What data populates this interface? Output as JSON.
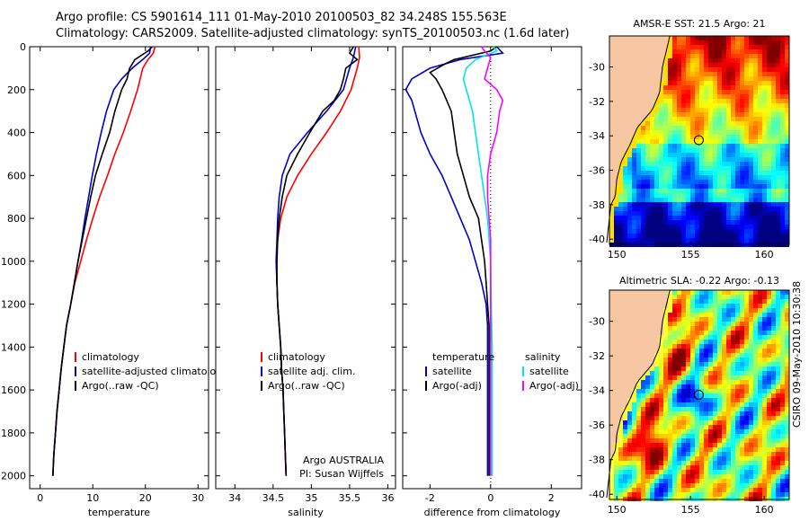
{
  "title_line1": "Argo profile: CS 5901614_111 01-May-2010 20100503_82 34.248S 155.563E",
  "title_line2": "Climatology: CARS2009. Satellite-adjusted climatology: synTS_20100503.nc (1.6d later)",
  "credit": "CSIRO 09-May-2010 10:30:38",
  "colors": {
    "climatology": "#ff0000",
    "satellite": "#0000cc",
    "argo": "#000000",
    "salinity_satellite": "#00e5e5",
    "salinity_argo": "#ff00ff"
  },
  "chart_data": [
    {
      "type": "line",
      "id": "temperature",
      "xlabel": "temperature",
      "xlim": [
        -2,
        32
      ],
      "xticks": [
        0,
        10,
        20,
        30
      ],
      "ylim": [
        0,
        2060
      ],
      "yticks": [
        0,
        200,
        400,
        600,
        800,
        1000,
        1200,
        1400,
        1600,
        1800,
        2000
      ],
      "y_reversed": true,
      "legend": [
        {
          "label": "climatology",
          "color": "#ff0000"
        },
        {
          "label": "satellite-adjusted climatology",
          "color": "#0000cc"
        },
        {
          "label": "Argo(..raw -QC)",
          "color": "#000000"
        }
      ],
      "series": [
        {
          "name": "climatology",
          "color": "#ff0000",
          "points": [
            [
              21.8,
              0
            ],
            [
              21.5,
              30
            ],
            [
              20.5,
              60
            ],
            [
              19.5,
              100
            ],
            [
              18.5,
              200
            ],
            [
              17.2,
              300
            ],
            [
              15.8,
              400
            ],
            [
              14.2,
              500
            ],
            [
              12.8,
              600
            ],
            [
              11.3,
              700
            ],
            [
              10.0,
              800
            ],
            [
              8.8,
              900
            ],
            [
              7.7,
              1000
            ],
            [
              6.6,
              1100
            ],
            [
              5.8,
              1200
            ],
            [
              5.0,
              1300
            ],
            [
              4.5,
              1400
            ],
            [
              4.0,
              1500
            ],
            [
              3.6,
              1600
            ],
            [
              3.2,
              1700
            ],
            [
              2.9,
              1800
            ],
            [
              2.6,
              1900
            ],
            [
              2.4,
              2000
            ]
          ]
        },
        {
          "name": "satellite-adjusted climatology",
          "color": "#0000cc",
          "points": [
            [
              21.0,
              0
            ],
            [
              20.8,
              30
            ],
            [
              19.5,
              60
            ],
            [
              17.5,
              100
            ],
            [
              15.5,
              150
            ],
            [
              14.0,
              200
            ],
            [
              12.6,
              300
            ],
            [
              11.6,
              400
            ],
            [
              10.7,
              500
            ],
            [
              9.9,
              600
            ],
            [
              9.2,
              700
            ],
            [
              8.5,
              800
            ],
            [
              7.9,
              900
            ],
            [
              7.2,
              1000
            ],
            [
              6.5,
              1100
            ],
            [
              5.8,
              1200
            ],
            [
              5.0,
              1300
            ],
            [
              4.5,
              1400
            ],
            [
              4.0,
              1500
            ],
            [
              3.6,
              1600
            ],
            [
              3.2,
              1700
            ],
            [
              2.9,
              1800
            ],
            [
              2.6,
              1900
            ],
            [
              2.4,
              2000
            ]
          ]
        },
        {
          "name": "Argo(..raw -QC)",
          "color": "#000000",
          "points": [
            [
              21.3,
              0
            ],
            [
              20.5,
              20
            ],
            [
              18.0,
              60
            ],
            [
              17.0,
              100
            ],
            [
              16.5,
              150
            ],
            [
              15.5,
              200
            ],
            [
              14.2,
              300
            ],
            [
              13.2,
              400
            ],
            [
              11.8,
              500
            ],
            [
              10.5,
              600
            ],
            [
              9.6,
              700
            ],
            [
              8.8,
              800
            ],
            [
              8.0,
              900
            ],
            [
              7.2,
              1000
            ],
            [
              6.5,
              1100
            ],
            [
              5.8,
              1200
            ],
            [
              5.0,
              1300
            ],
            [
              4.5,
              1400
            ],
            [
              4.0,
              1500
            ],
            [
              3.6,
              1600
            ],
            [
              3.2,
              1700
            ],
            [
              2.9,
              1800
            ],
            [
              2.6,
              1900
            ],
            [
              2.4,
              2000
            ]
          ]
        }
      ]
    },
    {
      "type": "line",
      "id": "salinity",
      "xlabel": "salinity",
      "xlim": [
        33.75,
        36.1
      ],
      "xticks": [
        34,
        34.5,
        35,
        35.5,
        36
      ],
      "ylim": [
        0,
        2060
      ],
      "y_reversed": true,
      "legend": [
        {
          "label": "climatology",
          "color": "#ff0000"
        },
        {
          "label": "satellite adj. clim.",
          "color": "#0000cc"
        },
        {
          "label": "Argo(..raw -QC)",
          "color": "#000000"
        }
      ],
      "annotation": [
        "Argo AUSTRALIA",
        "PI: Susan Wijffels"
      ],
      "series": [
        {
          "name": "climatology",
          "color": "#ff0000",
          "points": [
            [
              35.62,
              0
            ],
            [
              35.63,
              50
            ],
            [
              35.6,
              100
            ],
            [
              35.52,
              200
            ],
            [
              35.38,
              300
            ],
            [
              35.2,
              400
            ],
            [
              35.0,
              500
            ],
            [
              34.82,
              600
            ],
            [
              34.68,
              700
            ],
            [
              34.6,
              800
            ],
            [
              34.56,
              900
            ],
            [
              34.54,
              1000
            ],
            [
              34.55,
              1100
            ],
            [
              34.56,
              1200
            ],
            [
              34.58,
              1300
            ],
            [
              34.6,
              1400
            ],
            [
              34.61,
              1500
            ],
            [
              34.63,
              1600
            ],
            [
              34.64,
              1700
            ],
            [
              34.65,
              1800
            ],
            [
              34.66,
              1900
            ],
            [
              34.67,
              2000
            ]
          ]
        },
        {
          "name": "satellite adj. clim.",
          "color": "#0000cc",
          "points": [
            [
              35.58,
              0
            ],
            [
              35.55,
              50
            ],
            [
              35.5,
              100
            ],
            [
              35.42,
              200
            ],
            [
              35.2,
              300
            ],
            [
              34.95,
              400
            ],
            [
              34.72,
              500
            ],
            [
              34.62,
              600
            ],
            [
              34.58,
              700
            ],
            [
              34.56,
              800
            ],
            [
              34.55,
              900
            ],
            [
              34.54,
              1000
            ],
            [
              34.55,
              1100
            ],
            [
              34.56,
              1200
            ],
            [
              34.58,
              1300
            ],
            [
              34.6,
              1400
            ],
            [
              34.61,
              1500
            ],
            [
              34.63,
              1600
            ],
            [
              34.64,
              1700
            ],
            [
              34.65,
              1800
            ],
            [
              34.66,
              1900
            ],
            [
              34.67,
              2000
            ]
          ]
        },
        {
          "name": "Argo(..raw -QC)",
          "color": "#000000",
          "points": [
            [
              35.55,
              0
            ],
            [
              35.5,
              30
            ],
            [
              35.6,
              60
            ],
            [
              35.45,
              100
            ],
            [
              35.42,
              150
            ],
            [
              35.38,
              200
            ],
            [
              35.3,
              250
            ],
            [
              35.15,
              300
            ],
            [
              34.98,
              400
            ],
            [
              34.82,
              500
            ],
            [
              34.68,
              600
            ],
            [
              34.62,
              700
            ],
            [
              34.58,
              800
            ],
            [
              34.56,
              900
            ],
            [
              34.55,
              1000
            ],
            [
              34.55,
              1100
            ],
            [
              34.56,
              1200
            ],
            [
              34.58,
              1300
            ],
            [
              34.6,
              1400
            ],
            [
              34.61,
              1500
            ],
            [
              34.63,
              1600
            ],
            [
              34.64,
              1700
            ],
            [
              34.65,
              1800
            ],
            [
              34.66,
              1900
            ],
            [
              34.67,
              2000
            ]
          ]
        }
      ]
    },
    {
      "type": "line",
      "id": "difference",
      "xlabel": "difference from climatology",
      "xlim": [
        -2.9,
        3.0
      ],
      "xticks": [
        -2,
        0,
        2
      ],
      "ylim": [
        0,
        2060
      ],
      "y_reversed": true,
      "zero_line": true,
      "legend_temperature": {
        "heading": "temperature",
        "items": [
          {
            "label": "satellite",
            "color": "#0000cc"
          },
          {
            "label": "Argo(-adj)",
            "color": "#000000"
          }
        ]
      },
      "legend_salinity": {
        "heading": "salinity",
        "items": [
          {
            "label": "satellite",
            "color": "#00e5e5"
          },
          {
            "label": "Argo(-adj)",
            "color": "#ff00ff"
          }
        ]
      },
      "series": [
        {
          "name": "temperature satellite",
          "color": "#0000cc",
          "points": [
            [
              0.2,
              0
            ],
            [
              0.4,
              30
            ],
            [
              -1.0,
              60
            ],
            [
              -2.0,
              100
            ],
            [
              -2.6,
              150
            ],
            [
              -2.8,
              200
            ],
            [
              -2.6,
              250
            ],
            [
              -2.5,
              300
            ],
            [
              -2.3,
              400
            ],
            [
              -2.0,
              500
            ],
            [
              -1.6,
              600
            ],
            [
              -1.3,
              700
            ],
            [
              -1.0,
              800
            ],
            [
              -0.7,
              900
            ],
            [
              -0.5,
              1000
            ],
            [
              -0.3,
              1100
            ],
            [
              -0.15,
              1200
            ],
            [
              -0.1,
              1300
            ],
            [
              -0.1,
              1500
            ],
            [
              -0.1,
              2000
            ]
          ]
        },
        {
          "name": "temperature Argo(-adj)",
          "color": "#000000",
          "points": [
            [
              0.2,
              0
            ],
            [
              0.0,
              20
            ],
            [
              -1.2,
              60
            ],
            [
              -1.5,
              80
            ],
            [
              -2.0,
              120
            ],
            [
              -1.8,
              150
            ],
            [
              -1.6,
              200
            ],
            [
              -1.3,
              300
            ],
            [
              -1.2,
              400
            ],
            [
              -1.1,
              500
            ],
            [
              -0.9,
              600
            ],
            [
              -0.7,
              700
            ],
            [
              -0.4,
              800
            ],
            [
              -0.3,
              900
            ],
            [
              -0.2,
              1000
            ],
            [
              -0.15,
              1100
            ],
            [
              -0.1,
              1200
            ],
            [
              -0.05,
              1300
            ],
            [
              -0.05,
              2000
            ]
          ]
        },
        {
          "name": "salinity satellite",
          "color": "#00e5e5",
          "points": [
            [
              0.1,
              0
            ],
            [
              0.2,
              20
            ],
            [
              -0.5,
              60
            ],
            [
              -0.8,
              100
            ],
            [
              -0.9,
              150
            ],
            [
              -0.8,
              200
            ],
            [
              -0.6,
              300
            ],
            [
              -0.5,
              400
            ],
            [
              -0.4,
              500
            ],
            [
              -0.3,
              600
            ],
            [
              -0.2,
              700
            ],
            [
              -0.1,
              800
            ],
            [
              -0.05,
              900
            ],
            [
              0.0,
              1000
            ],
            [
              0.02,
              1200
            ],
            [
              0.05,
              1400
            ],
            [
              0.05,
              2000
            ]
          ]
        },
        {
          "name": "salinity Argo(-adj)",
          "color": "#ff00ff",
          "points": [
            [
              -0.3,
              0
            ],
            [
              -0.2,
              20
            ],
            [
              0.0,
              50
            ],
            [
              -0.1,
              100
            ],
            [
              -0.2,
              150
            ],
            [
              0.2,
              200
            ],
            [
              0.4,
              250
            ],
            [
              0.3,
              300
            ],
            [
              0.2,
              400
            ],
            [
              0.0,
              500
            ],
            [
              -0.1,
              600
            ],
            [
              -0.1,
              700
            ],
            [
              -0.05,
              800
            ],
            [
              0.0,
              900
            ],
            [
              0.0,
              1000
            ],
            [
              0.0,
              1500
            ],
            [
              0.0,
              2000
            ]
          ]
        }
      ]
    },
    {
      "type": "heatmap",
      "id": "sst_map",
      "title": "AMSR-E SST: 21.5 Argo: 21",
      "xlim": [
        149.5,
        161.7
      ],
      "ylim": [
        -40.3,
        -28.2
      ],
      "xticks": [
        150,
        155,
        160
      ],
      "yticks": [
        -30,
        -32,
        -34,
        -36,
        -38,
        -40
      ],
      "marker": [
        155.563,
        -34.248
      ],
      "land_color": "#f7c7a3",
      "colormap": "jet"
    },
    {
      "type": "heatmap",
      "id": "sla_map",
      "title": "Altimetric SLA: -0.22 Argo: -0.13",
      "xlim": [
        149.5,
        161.7
      ],
      "ylim": [
        -40.3,
        -28.2
      ],
      "xticks": [
        150,
        155,
        160
      ],
      "yticks": [
        -30,
        -32,
        -34,
        -36,
        -38,
        -40
      ],
      "marker": [
        155.563,
        -34.248
      ],
      "land_color": "#f7c7a3",
      "colormap": "jet"
    }
  ]
}
